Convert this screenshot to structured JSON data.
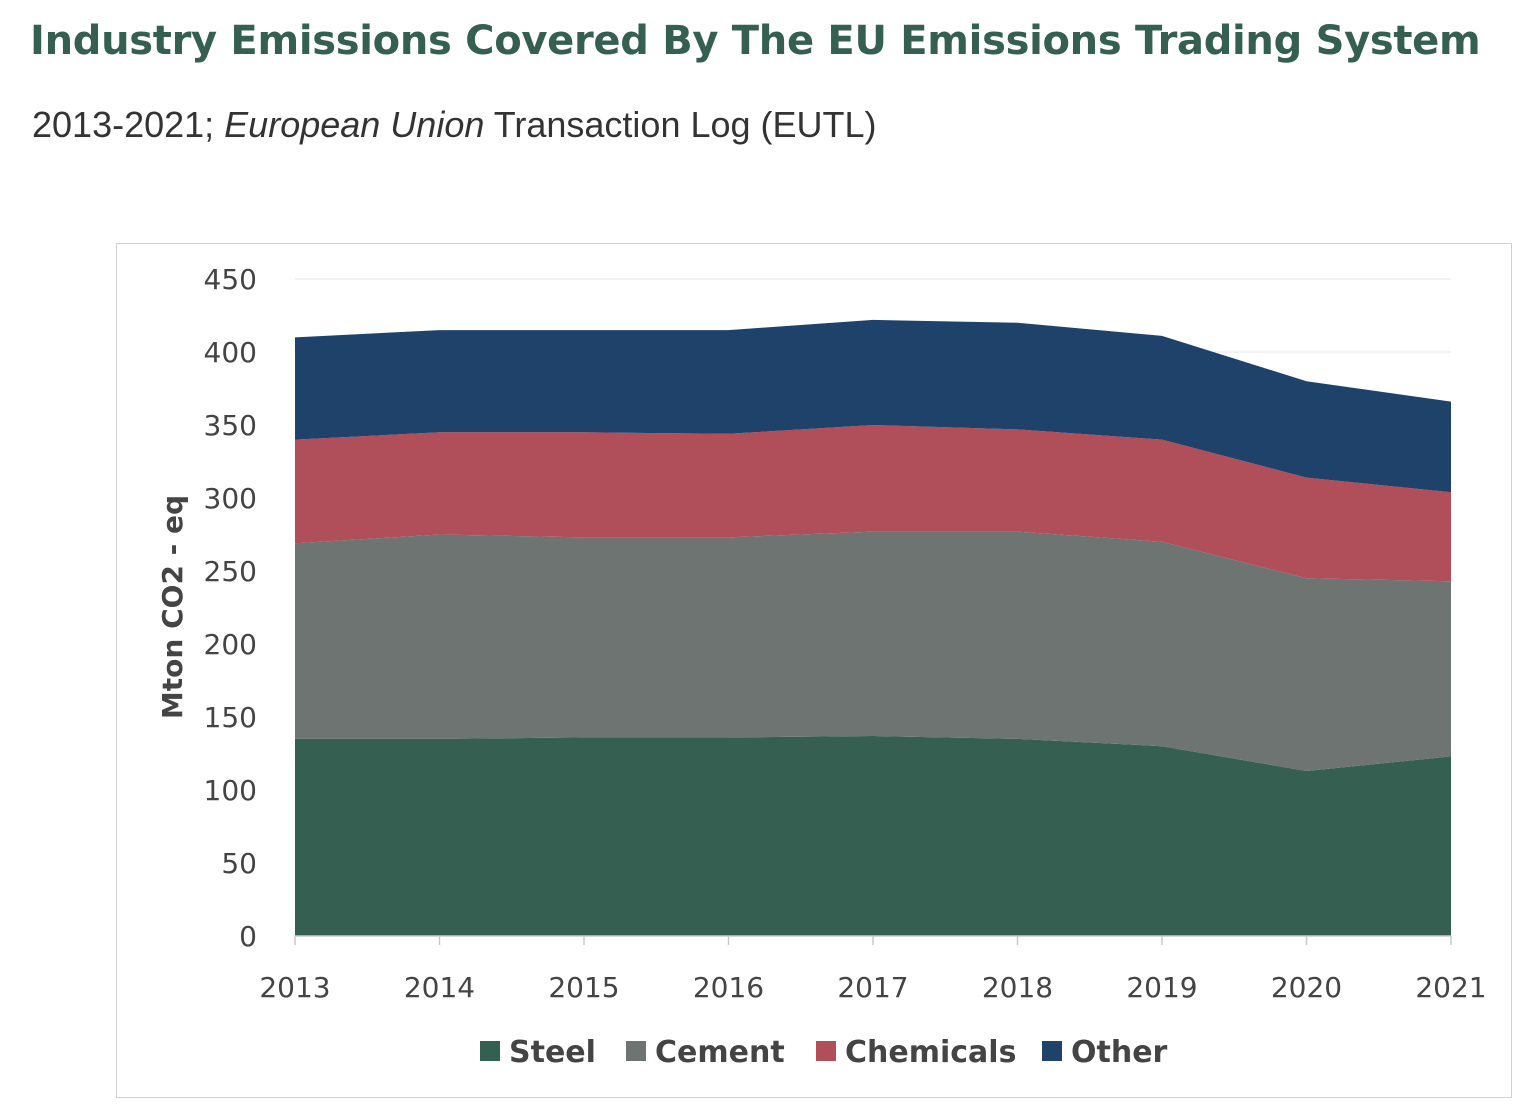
{
  "header": {
    "title": "Industry Emissions Covered By The EU Emissions Trading System",
    "subtitle_prefix": "2013-2021; ",
    "subtitle_italic": "European Union",
    "subtitle_suffix": " Transaction Log (EUTL)"
  },
  "chart_data": {
    "type": "area",
    "stacked": true,
    "x": [
      "2013",
      "2014",
      "2015",
      "2016",
      "2017",
      "2018",
      "2019",
      "2020",
      "2021"
    ],
    "series": [
      {
        "name": "Steel",
        "color": "#355f50",
        "values": [
          135,
          135,
          136,
          136,
          137,
          135,
          130,
          113,
          123
        ]
      },
      {
        "name": "Cement",
        "color": "#6e7472",
        "values": [
          134,
          140,
          137,
          137,
          140,
          142,
          140,
          132,
          120
        ]
      },
      {
        "name": "Chemicals",
        "color": "#b04e5a",
        "values": [
          71,
          70,
          72,
          71,
          73,
          70,
          70,
          69,
          61
        ]
      },
      {
        "name": "Other",
        "color": "#1f426b",
        "values": [
          70,
          70,
          70,
          71,
          72,
          73,
          71,
          66,
          62
        ]
      }
    ],
    "ylabel": "Mton CO2 - eq",
    "ylim": [
      0,
      450
    ],
    "yticks": [
      "0",
      "50",
      "100",
      "150",
      "200",
      "250",
      "300",
      "350",
      "400",
      "450"
    ],
    "grid": true,
    "legend_position": "bottom"
  }
}
